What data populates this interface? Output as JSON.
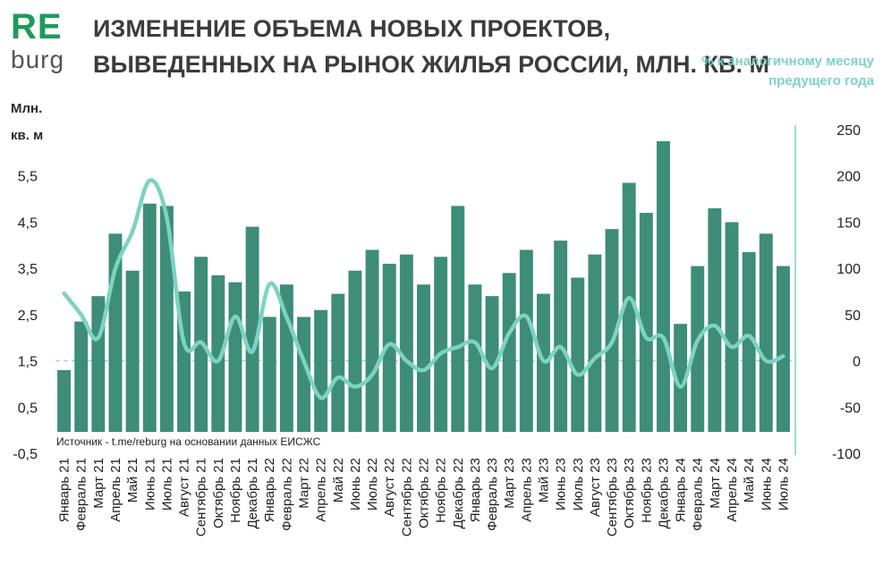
{
  "logo": {
    "top": "RE",
    "bottom": "burg"
  },
  "header": {
    "title": "ИЗМЕНЕНИЕ ОБЪЕМА НОВЫХ ПРОЕКТОВ, ВЫВЕДЕННЫХ НА РЫНОК ЖИЛЬЯ РОССИИ, МЛН. КВ. М",
    "left_axis_label": "Млн. кв. м",
    "right_axis_label": "% к аналогичному месяцу предущего года"
  },
  "source": "Источник - t.me/reburg на основании данных ЕИСЖС",
  "colors": {
    "bar": "#3d8d78",
    "line": "#7dd3c2",
    "logo_green": "#1f9a5b"
  },
  "chart_data": {
    "type": "bar",
    "categories": [
      "Январь 21",
      "Февраль 21",
      "Март 21",
      "Апрель 21",
      "Май 21",
      "Июнь 21",
      "Июль 21",
      "Август 21",
      "Сентябрь 21",
      "Октябрь 21",
      "Ноябрь 21",
      "Декабрь 21",
      "Январь 22",
      "Февраль 22",
      "Март 22",
      "Апрель 22",
      "Май 22",
      "Июнь 22",
      "Июль 22",
      "Август 22",
      "Сентябрь 22",
      "Октябрь 22",
      "Ноябрь 22",
      "Декабрь 22",
      "Январь 23",
      "Февраль 23",
      "Март 23",
      "Апрель 23",
      "Май 23",
      "Июнь 23",
      "Июль 23",
      "Август 23",
      "Сентябрь 23",
      "Октябрь 23",
      "Ноябрь 23",
      "Декабрь 23",
      "Январь 24",
      "Февраль 24",
      "Март 24",
      "Апрель 24",
      "Май 24",
      "Июнь 24",
      "Июль 24"
    ],
    "series": [
      {
        "axis": "left",
        "type": "bar",
        "values": [
          1.3,
          2.35,
          2.9,
          4.25,
          3.45,
          4.9,
          4.85,
          3.0,
          3.75,
          3.35,
          3.2,
          4.4,
          2.45,
          3.15,
          2.45,
          2.6,
          2.95,
          3.45,
          3.9,
          3.6,
          3.8,
          3.15,
          3.75,
          4.85,
          3.15,
          2.9,
          3.4,
          3.9,
          2.95,
          4.1,
          3.3,
          3.8,
          4.35,
          5.35,
          4.7,
          6.25,
          2.3,
          3.55,
          4.8,
          4.5,
          3.85,
          4.25,
          3.55
        ]
      },
      {
        "axis": "right",
        "type": "line",
        "values": [
          73,
          50,
          25,
          100,
          140,
          195,
          155,
          20,
          20,
          0,
          48,
          10,
          83,
          47,
          0,
          -40,
          -18,
          -28,
          -15,
          18,
          0,
          -10,
          8,
          15,
          20,
          -8,
          30,
          48,
          0,
          15,
          -15,
          3,
          20,
          68,
          25,
          25,
          -28,
          22,
          38,
          15,
          27,
          0,
          5
        ]
      }
    ],
    "y_left": {
      "ticks": [
        "-0,5",
        "0,5",
        "1,5",
        "2,5",
        "3,5",
        "4,5",
        "5,5"
      ],
      "ylim": [
        -0.5,
        6.5
      ]
    },
    "y_right": {
      "ticks": [
        "-100",
        "-50",
        "0",
        "50",
        "100",
        "150",
        "200",
        "250"
      ],
      "ylim": [
        -100,
        250
      ]
    }
  }
}
